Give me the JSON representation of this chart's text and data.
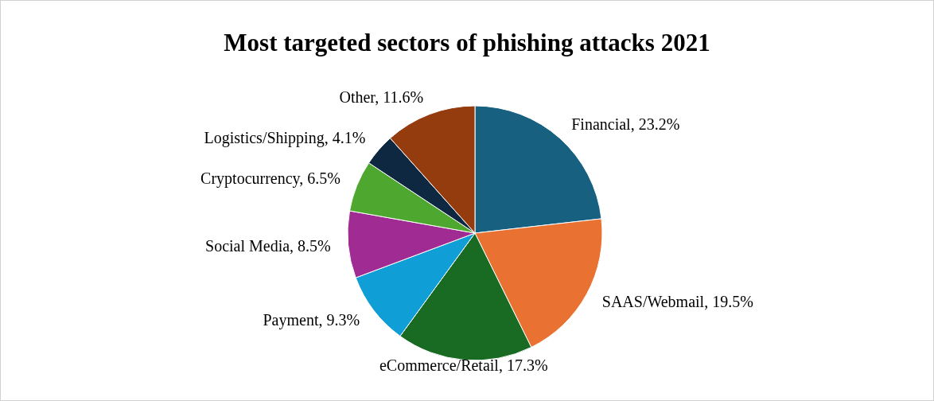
{
  "chart_data": {
    "type": "pie",
    "title": "Most targeted sectors of phishing attacks 2021",
    "categories": [
      "Financial",
      "SAAS/Webmail",
      "eCommerce/Retail",
      "Payment",
      "Social Media",
      "Cryptocurrency",
      "Logistics/Shipping",
      "Other"
    ],
    "values": [
      23.2,
      19.5,
      17.3,
      9.3,
      8.5,
      6.5,
      4.1,
      11.6
    ],
    "value_labels": [
      "23.2%",
      "19.5%",
      "17.3%",
      "9.3%",
      "8.5%",
      "6.5%",
      "4.1%",
      "11.6%"
    ],
    "colors": [
      "#17607f",
      "#e97132",
      "#196b24",
      "#0f9ed5",
      "#a02b93",
      "#4ea72e",
      "#0e2841",
      "#953c0f"
    ]
  }
}
